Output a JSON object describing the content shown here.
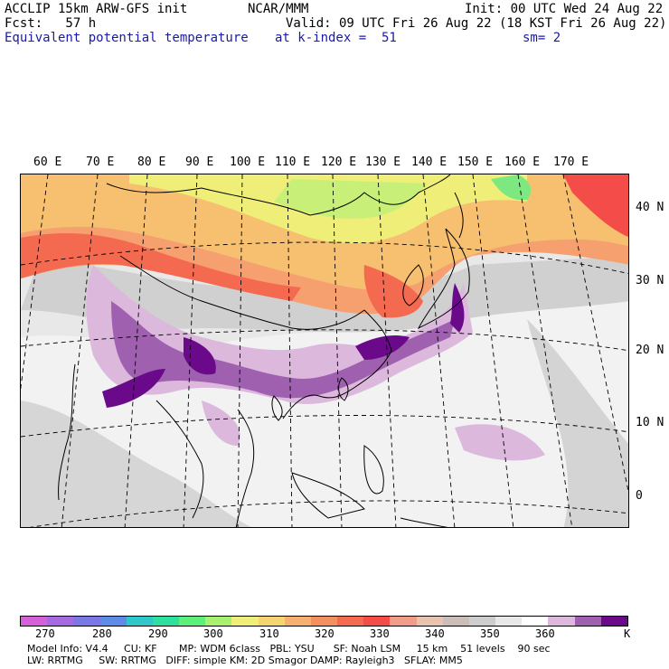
{
  "header": {
    "line1_left": "ACCLIP 15km ARW-GFS init",
    "line1_mid": "NCAR/MMM",
    "line1_right": "Init: 00 UTC Wed 24 Aug 22",
    "line2_left": "Fcst:   57 h",
    "line2_right": "Valid: 09 UTC Fri 26 Aug 22 (18 KST Fri 26 Aug 22)",
    "line3_left": "Equivalent potential temperature",
    "line3_mid": "at k-index =  51",
    "line3_right": "sm= 2"
  },
  "map": {
    "lon_labels": [
      "60 E",
      "70 E",
      "80 E",
      "90 E",
      "100 E",
      "110 E",
      "120 E",
      "130 E",
      "140 E",
      "150 E",
      "160 E",
      "170 E"
    ],
    "lat_labels": [
      "40 N",
      "30 N",
      "20 N",
      "10 N",
      "0"
    ]
  },
  "colorbar": {
    "colors": [
      "#d560d8",
      "#a56ae0",
      "#7a78e6",
      "#5e8ae8",
      "#2fc7c7",
      "#2ee0a0",
      "#5cf07a",
      "#a8f070",
      "#eeee78",
      "#f6d470",
      "#f6b070",
      "#f49060",
      "#f46a50",
      "#f44c48",
      "#f09c88",
      "#e8c4b0",
      "#cbbdb8",
      "#cdcdcd",
      "#e8e8e8",
      "#ffffff",
      "#dcb8dc",
      "#a060b0",
      "#6a0a8a"
    ],
    "tick_labels": [
      "270",
      "280",
      "290",
      "300",
      "310",
      "320",
      "330",
      "340",
      "350",
      "360"
    ],
    "unit": "K"
  },
  "model_info": {
    "line1": "Model Info: V4.4     CU: KF       MP: WDM 6class   PBL: YSU      SF: Noah LSM     15 km    51 levels    90 sec",
    "line2": "LW: RRTMG     SW: RRTMG   DIFF: simple KM: 2D Smagor DAMP: Rayleigh3   SFLAY: MM5"
  }
}
